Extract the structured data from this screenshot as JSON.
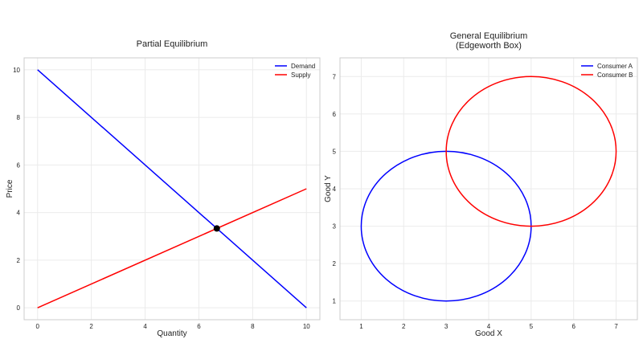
{
  "chart_data": [
    {
      "type": "line",
      "title": "Partial Equilibrium",
      "xlabel": "Quantity",
      "ylabel": "Price",
      "xlim": [
        -0.5,
        10.5
      ],
      "ylim": [
        -0.5,
        10.5
      ],
      "xticks": [
        0,
        2,
        4,
        6,
        8,
        10
      ],
      "yticks": [
        0,
        2,
        4,
        6,
        8,
        10
      ],
      "grid": true,
      "legend": "top-right",
      "series": [
        {
          "name": "Demand",
          "color": "#0000ff",
          "x": [
            0,
            10
          ],
          "y": [
            10,
            0
          ]
        },
        {
          "name": "Supply",
          "color": "#ff0000",
          "x": [
            0,
            10
          ],
          "y": [
            0,
            5
          ]
        }
      ],
      "points": [
        {
          "name": "Equilibrium",
          "x": 6.667,
          "y": 3.333,
          "color": "#000000"
        }
      ]
    },
    {
      "type": "line",
      "title": "General Equilibrium",
      "subtitle": "(Edgeworth Box)",
      "xlabel": "Good X",
      "ylabel": "Good Y",
      "xlim": [
        0.5,
        7.5
      ],
      "ylim": [
        0.5,
        7.5
      ],
      "xticks": [
        1,
        2,
        3,
        4,
        5,
        6,
        7
      ],
      "yticks": [
        1,
        2,
        3,
        4,
        5,
        6,
        7
      ],
      "grid": true,
      "legend": "top-right",
      "series": [
        {
          "name": "Consumer A",
          "color": "#0000ff",
          "shape": "circle",
          "center": [
            3,
            3
          ],
          "radius": 2
        },
        {
          "name": "Consumer B",
          "color": "#ff0000",
          "shape": "circle",
          "center": [
            5,
            5
          ],
          "radius": 2
        }
      ]
    }
  ]
}
